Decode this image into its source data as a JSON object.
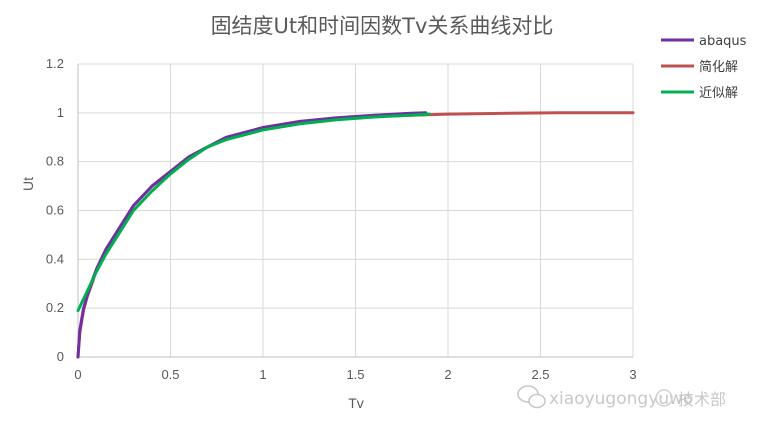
{
  "chart_data": {
    "type": "line",
    "title": "固结度Ut和时间因数Tv关系曲线对比",
    "xlabel": "Tv",
    "ylabel": "Ut",
    "xlim": [
      0,
      3
    ],
    "ylim": [
      0,
      1.2
    ],
    "x_ticks": [
      "0",
      "0.5",
      "1",
      "1.5",
      "2",
      "2.5",
      "3"
    ],
    "y_ticks": [
      "0",
      "0.2",
      "0.4",
      "0.6",
      "0.8",
      "1",
      "1.2"
    ],
    "grid": true,
    "legend_position": "top-right",
    "series": [
      {
        "name": "abaqus",
        "color": "#7030a0",
        "x": [
          0,
          0.01,
          0.03,
          0.05,
          0.08,
          0.1,
          0.15,
          0.2,
          0.3,
          0.4,
          0.5,
          0.6,
          0.7,
          0.8,
          1.0,
          1.2,
          1.4,
          1.6,
          1.8,
          1.88
        ],
        "y": [
          0,
          0.11,
          0.2,
          0.25,
          0.32,
          0.36,
          0.44,
          0.5,
          0.62,
          0.7,
          0.76,
          0.82,
          0.86,
          0.9,
          0.94,
          0.965,
          0.98,
          0.99,
          0.998,
          1.0
        ]
      },
      {
        "name": "简化解",
        "color": "#c0504d",
        "x": [
          0,
          0.01,
          0.03,
          0.05,
          0.08,
          0.1,
          0.15,
          0.2,
          0.3,
          0.4,
          0.5,
          0.6,
          0.7,
          0.8,
          1.0,
          1.2,
          1.4,
          1.6,
          1.8,
          2.0,
          2.2,
          2.4,
          2.6,
          2.8,
          3.0
        ],
        "y": [
          0,
          0.1,
          0.19,
          0.25,
          0.31,
          0.36,
          0.44,
          0.5,
          0.62,
          0.7,
          0.76,
          0.82,
          0.86,
          0.895,
          0.935,
          0.96,
          0.975,
          0.985,
          0.99,
          0.995,
          0.997,
          0.999,
          1.0,
          1.0,
          1.0
        ]
      },
      {
        "name": "近似解",
        "color": "#00b050",
        "x": [
          0,
          0.05,
          0.1,
          0.15,
          0.2,
          0.3,
          0.4,
          0.5,
          0.6,
          0.7,
          0.8,
          1.0,
          1.2,
          1.4,
          1.6,
          1.8,
          1.9
        ],
        "y": [
          0.19,
          0.27,
          0.35,
          0.42,
          0.48,
          0.6,
          0.68,
          0.75,
          0.81,
          0.86,
          0.89,
          0.93,
          0.955,
          0.972,
          0.983,
          0.99,
          0.995
        ]
      }
    ]
  },
  "watermark": {
    "text": "xiaoyugongyuwo",
    "sub": "技术部"
  }
}
